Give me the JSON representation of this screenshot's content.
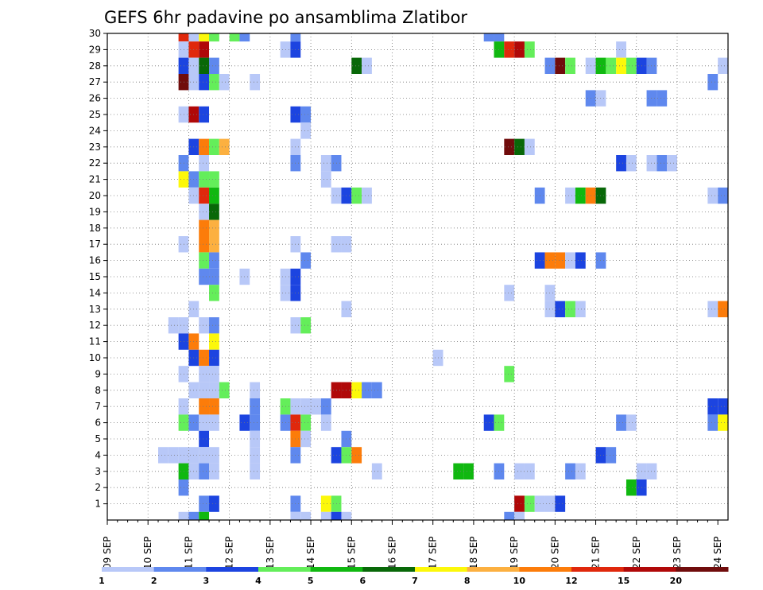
{
  "chart_data": {
    "type": "heatmap",
    "title": "GEFS 6hr padavine po ansamblima Zlatibor",
    "x_tick_labels": [
      "09 SEP",
      "10 SEP",
      "11 SEP",
      "12 SEP",
      "13 SEP",
      "14 SEP",
      "15 SEP",
      "16 SEP",
      "17 SEP",
      "18 SEP",
      "19 SEP",
      "20 SEP",
      "21 SEP",
      "22 SEP",
      "23 SEP",
      "24 SEP"
    ],
    "y_tick_labels": [
      1,
      2,
      3,
      4,
      5,
      6,
      7,
      8,
      9,
      10,
      11,
      12,
      13,
      14,
      15,
      16,
      17,
      18,
      19,
      20,
      21,
      22,
      23,
      24,
      25,
      26,
      27,
      28,
      29,
      30
    ],
    "x_unit": "6h steps from 09 SEP 00 UTC",
    "grid": "dotted",
    "colorbar": {
      "levels": [
        "1",
        "2",
        "3",
        "4",
        "5",
        "6",
        "7",
        "8",
        "10",
        "12",
        "15",
        "20"
      ],
      "colors": [
        "#b8c8f8",
        "#5f88ee",
        "#1c44e0",
        "#64ee5a",
        "#10b810",
        "#086808",
        "#fcf80a",
        "#fcb040",
        "#fc7c0a",
        "#e0280c",
        "#b00808",
        "#700c0c"
      ]
    },
    "cells": [
      {
        "m": 30,
        "s": [
          [
            8,
            9
          ],
          [
            9,
            0
          ],
          [
            10,
            6
          ],
          [
            11,
            3
          ],
          [
            13,
            3
          ],
          [
            14,
            1
          ],
          [
            19,
            1
          ],
          [
            38,
            1
          ],
          [
            39,
            1
          ]
        ]
      },
      {
        "m": 29,
        "s": [
          [
            8,
            0
          ],
          [
            9,
            9
          ],
          [
            10,
            10
          ],
          [
            18,
            0
          ],
          [
            19,
            2
          ],
          [
            39,
            4
          ],
          [
            40,
            9
          ],
          [
            41,
            10
          ],
          [
            42,
            3
          ],
          [
            51,
            0
          ]
        ]
      },
      {
        "m": 28,
        "s": [
          [
            8,
            2
          ],
          [
            9,
            0
          ],
          [
            10,
            5
          ],
          [
            11,
            1
          ],
          [
            25,
            5
          ],
          [
            26,
            0
          ],
          [
            44,
            1
          ],
          [
            45,
            11
          ],
          [
            46,
            3
          ],
          [
            48,
            0
          ],
          [
            49,
            4
          ],
          [
            50,
            3
          ],
          [
            51,
            6
          ],
          [
            52,
            3
          ],
          [
            53,
            2
          ],
          [
            54,
            1
          ],
          [
            61,
            0
          ]
        ]
      },
      {
        "m": 27,
        "s": [
          [
            8,
            11
          ],
          [
            9,
            0
          ],
          [
            10,
            2
          ],
          [
            11,
            3
          ],
          [
            12,
            0
          ],
          [
            15,
            0
          ],
          [
            60,
            1
          ]
        ]
      },
      {
        "m": 26,
        "s": [
          [
            48,
            1
          ],
          [
            49,
            0
          ],
          [
            54,
            1
          ],
          [
            55,
            1
          ]
        ]
      },
      {
        "m": 25,
        "s": [
          [
            8,
            0
          ],
          [
            9,
            10
          ],
          [
            10,
            2
          ],
          [
            19,
            2
          ],
          [
            20,
            1
          ]
        ]
      },
      {
        "m": 24,
        "s": [
          [
            20,
            0
          ]
        ]
      },
      {
        "m": 23,
        "s": [
          [
            9,
            2
          ],
          [
            10,
            8
          ],
          [
            11,
            3
          ],
          [
            12,
            7
          ],
          [
            19,
            0
          ],
          [
            40,
            11
          ],
          [
            41,
            5
          ],
          [
            42,
            0
          ]
        ]
      },
      {
        "m": 22,
        "s": [
          [
            8,
            1
          ],
          [
            10,
            0
          ],
          [
            19,
            1
          ],
          [
            22,
            0
          ],
          [
            23,
            1
          ],
          [
            51,
            2
          ],
          [
            52,
            0
          ],
          [
            54,
            0
          ],
          [
            55,
            1
          ],
          [
            56,
            0
          ]
        ]
      },
      {
        "m": 21,
        "s": [
          [
            8,
            6
          ],
          [
            9,
            1
          ],
          [
            10,
            3
          ],
          [
            11,
            3
          ],
          [
            22,
            0
          ]
        ]
      },
      {
        "m": 20,
        "s": [
          [
            9,
            0
          ],
          [
            10,
            9
          ],
          [
            11,
            4
          ],
          [
            23,
            0
          ],
          [
            24,
            2
          ],
          [
            25,
            3
          ],
          [
            26,
            0
          ],
          [
            43,
            1
          ],
          [
            46,
            0
          ],
          [
            47,
            4
          ],
          [
            48,
            8
          ],
          [
            49,
            5
          ],
          [
            60,
            0
          ],
          [
            61,
            1
          ]
        ]
      },
      {
        "m": 19,
        "s": [
          [
            10,
            0
          ],
          [
            11,
            5
          ]
        ]
      },
      {
        "m": 18,
        "s": [
          [
            10,
            8
          ],
          [
            11,
            7
          ]
        ]
      },
      {
        "m": 17,
        "s": [
          [
            8,
            0
          ],
          [
            10,
            8
          ],
          [
            11,
            7
          ],
          [
            19,
            0
          ],
          [
            23,
            0
          ],
          [
            24,
            0
          ]
        ]
      },
      {
        "m": 16,
        "s": [
          [
            10,
            3
          ],
          [
            11,
            1
          ],
          [
            20,
            1
          ],
          [
            43,
            2
          ],
          [
            44,
            8
          ],
          [
            45,
            8
          ],
          [
            46,
            0
          ],
          [
            47,
            2
          ],
          [
            49,
            1
          ]
        ]
      },
      {
        "m": 15,
        "s": [
          [
            10,
            1
          ],
          [
            11,
            1
          ],
          [
            14,
            0
          ],
          [
            18,
            0
          ],
          [
            19,
            2
          ]
        ]
      },
      {
        "m": 14,
        "s": [
          [
            11,
            3
          ],
          [
            18,
            0
          ],
          [
            19,
            2
          ],
          [
            40,
            0
          ],
          [
            44,
            0
          ]
        ]
      },
      {
        "m": 13,
        "s": [
          [
            9,
            0
          ],
          [
            24,
            0
          ],
          [
            44,
            0
          ],
          [
            45,
            2
          ],
          [
            46,
            3
          ],
          [
            47,
            0
          ],
          [
            60,
            0
          ],
          [
            61,
            8
          ]
        ]
      },
      {
        "m": 12,
        "s": [
          [
            7,
            0
          ],
          [
            8,
            0
          ],
          [
            10,
            0
          ],
          [
            11,
            1
          ],
          [
            19,
            0
          ],
          [
            20,
            3
          ]
        ]
      },
      {
        "m": 11,
        "s": [
          [
            8,
            2
          ],
          [
            9,
            8
          ],
          [
            11,
            6
          ]
        ]
      },
      {
        "m": 10,
        "s": [
          [
            9,
            2
          ],
          [
            10,
            8
          ],
          [
            11,
            2
          ],
          [
            33,
            0
          ]
        ]
      },
      {
        "m": 9,
        "s": [
          [
            8,
            0
          ],
          [
            10,
            0
          ],
          [
            11,
            0
          ],
          [
            40,
            3
          ]
        ]
      },
      {
        "m": 8,
        "s": [
          [
            9,
            0
          ],
          [
            10,
            0
          ],
          [
            11,
            0
          ],
          [
            12,
            3
          ],
          [
            15,
            0
          ],
          [
            23,
            10
          ],
          [
            24,
            10
          ],
          [
            25,
            6
          ],
          [
            26,
            1
          ],
          [
            27,
            1
          ]
        ]
      },
      {
        "m": 7,
        "s": [
          [
            8,
            0
          ],
          [
            10,
            8
          ],
          [
            11,
            8
          ],
          [
            15,
            1
          ],
          [
            18,
            3
          ],
          [
            19,
            0
          ],
          [
            20,
            0
          ],
          [
            21,
            0
          ],
          [
            22,
            1
          ],
          [
            60,
            2
          ],
          [
            61,
            2
          ]
        ]
      },
      {
        "m": 6,
        "s": [
          [
            8,
            3
          ],
          [
            9,
            1
          ],
          [
            10,
            0
          ],
          [
            11,
            0
          ],
          [
            14,
            2
          ],
          [
            15,
            1
          ],
          [
            18,
            1
          ],
          [
            19,
            9
          ],
          [
            20,
            3
          ],
          [
            22,
            0
          ],
          [
            38,
            2
          ],
          [
            39,
            3
          ],
          [
            51,
            1
          ],
          [
            52,
            0
          ],
          [
            60,
            1
          ],
          [
            61,
            6
          ]
        ]
      },
      {
        "m": 5,
        "s": [
          [
            10,
            2
          ],
          [
            15,
            0
          ],
          [
            19,
            8
          ],
          [
            20,
            0
          ],
          [
            24,
            1
          ]
        ]
      },
      {
        "m": 4,
        "s": [
          [
            6,
            0
          ],
          [
            7,
            0
          ],
          [
            8,
            0
          ],
          [
            9,
            0
          ],
          [
            10,
            0
          ],
          [
            11,
            0
          ],
          [
            15,
            0
          ],
          [
            19,
            1
          ],
          [
            23,
            2
          ],
          [
            24,
            3
          ],
          [
            25,
            8
          ],
          [
            49,
            2
          ],
          [
            50,
            1
          ]
        ]
      },
      {
        "m": 3,
        "s": [
          [
            8,
            4
          ],
          [
            9,
            0
          ],
          [
            10,
            1
          ],
          [
            11,
            0
          ],
          [
            15,
            0
          ],
          [
            27,
            0
          ],
          [
            35,
            4
          ],
          [
            36,
            4
          ],
          [
            39,
            1
          ],
          [
            41,
            0
          ],
          [
            42,
            0
          ],
          [
            46,
            1
          ],
          [
            47,
            0
          ],
          [
            53,
            0
          ],
          [
            54,
            0
          ]
        ]
      },
      {
        "m": 2,
        "s": [
          [
            8,
            1
          ],
          [
            52,
            4
          ],
          [
            53,
            2
          ]
        ]
      },
      {
        "m": 1,
        "s": [
          [
            10,
            1
          ],
          [
            11,
            2
          ],
          [
            19,
            1
          ],
          [
            22,
            6
          ],
          [
            23,
            3
          ],
          [
            41,
            10
          ],
          [
            42,
            3
          ],
          [
            43,
            0
          ],
          [
            44,
            0
          ],
          [
            45,
            2
          ]
        ]
      },
      {
        "m": 0,
        "s": [
          [
            8,
            0
          ],
          [
            9,
            1
          ],
          [
            10,
            4
          ],
          [
            19,
            0
          ],
          [
            20,
            0
          ],
          [
            22,
            0
          ],
          [
            23,
            2
          ],
          [
            24,
            0
          ],
          [
            40,
            1
          ],
          [
            41,
            0
          ]
        ]
      }
    ]
  }
}
